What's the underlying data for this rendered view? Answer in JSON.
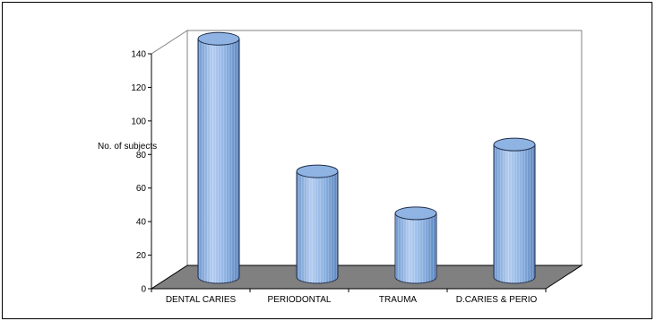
{
  "chart_data": {
    "type": "bar",
    "title": "",
    "xlabel": "",
    "ylabel": "No. of subjects",
    "categories": [
      "DENTAL CARIES",
      "PERIODONTAL",
      "TRAUMA",
      "D.CARIES & PERIO"
    ],
    "values": [
      142,
      63,
      38,
      79
    ],
    "yticks": [
      0,
      20,
      40,
      60,
      80,
      100,
      120,
      140
    ],
    "ylim": [
      0,
      140
    ],
    "grid": false,
    "legend": "none",
    "colors": {
      "bar": "#8fb4e3",
      "bar_edge": "#1f2d4a",
      "floor": "#808080",
      "axis": "#808080"
    }
  }
}
